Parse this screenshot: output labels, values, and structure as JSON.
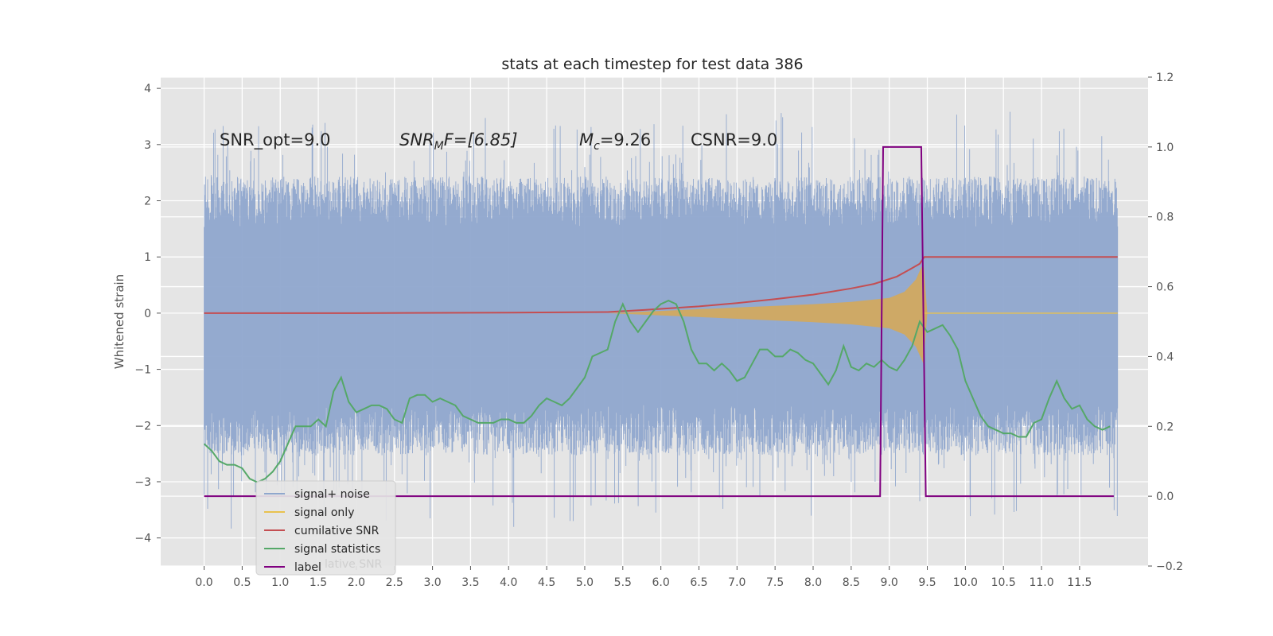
{
  "chart_data": {
    "type": "line",
    "title": "stats at each timestep for test data 386",
    "ylabel": "Whitened strain",
    "xlabel": "",
    "xlim": [
      -0.57,
      12.4
    ],
    "ylim": [
      -4.5,
      4.2
    ],
    "ylim_right": [
      -0.2,
      1.2
    ],
    "grid": true,
    "legend_position": "lower-left",
    "x_ticks": [
      "0.0",
      "0.5",
      "1.0",
      "1.5",
      "2.0",
      "2.5",
      "3.0",
      "3.5",
      "4.0",
      "4.5",
      "5.0",
      "5.5",
      "6.0",
      "6.5",
      "7.0",
      "7.5",
      "8.0",
      "8.5",
      "9.0",
      "9.5",
      "10.0",
      "10.5",
      "11.0",
      "11.5"
    ],
    "y_ticks": [
      "4",
      "3",
      "2",
      "1",
      "0",
      "−1",
      "−2",
      "−3",
      "−4"
    ],
    "y_ticks_right": [
      "1.2",
      "1.0",
      "0.8",
      "0.6",
      "0.4",
      "0.2",
      "0.0",
      "−0.2"
    ],
    "annotations": {
      "snr_opt": "SNR_opt=9.0",
      "snr_mf_base": "SNR",
      "snr_mf_sub": "M",
      "snr_mf_rest": "F=[6.85]",
      "mc_base": "M",
      "mc_sub": "c",
      "mc_rest": "=9.26",
      "csnr": "CSNR=9.0"
    },
    "colors": {
      "noise": "#8fa7cd",
      "signal": "#e8c24f",
      "signal_fill": "#d4a85a",
      "cumulative": "#c44e52",
      "statistics": "#55a868",
      "label": "#800080",
      "background": "#e5e5e5",
      "grid": "#ffffff"
    },
    "series": [
      {
        "name": "signal+ noise",
        "axis": "left",
        "x_range": [
          0,
          12.0
        ],
        "note_envelope": {
          "upper_typical": 1.8,
          "lower_typical": -1.9,
          "peak_max": 3.85,
          "peak_min": -4.1
        }
      },
      {
        "name": "signal only",
        "axis": "left",
        "x": [
          5.3,
          6.0,
          6.5,
          7.0,
          7.5,
          8.0,
          8.5,
          9.0,
          9.2,
          9.35,
          9.45,
          9.5,
          12.0
        ],
        "upper": [
          0.0,
          0.04,
          0.07,
          0.1,
          0.13,
          0.16,
          0.2,
          0.27,
          0.38,
          0.6,
          0.9,
          0.0,
          0.0
        ],
        "lower": [
          0.0,
          -0.04,
          -0.07,
          -0.1,
          -0.13,
          -0.16,
          -0.2,
          -0.27,
          -0.38,
          -0.6,
          -0.9,
          0.0,
          0.0
        ]
      },
      {
        "name": "cumilative SNR",
        "axis": "left",
        "x": [
          0.0,
          2.0,
          4.0,
          5.3,
          5.8,
          6.5,
          7.0,
          7.5,
          8.0,
          8.5,
          8.8,
          9.1,
          9.3,
          9.4,
          9.46,
          12.0
        ],
        "y": [
          0.0,
          0.0,
          0.01,
          0.02,
          0.06,
          0.12,
          0.18,
          0.25,
          0.33,
          0.44,
          0.52,
          0.65,
          0.8,
          0.88,
          1.0,
          1.0
        ]
      },
      {
        "name": "signal statistics",
        "axis": "right",
        "x": [
          0.0,
          0.1,
          0.2,
          0.3,
          0.4,
          0.5,
          0.6,
          0.7,
          0.8,
          0.9,
          1.0,
          1.1,
          1.2,
          1.3,
          1.4,
          1.5,
          1.6,
          1.7,
          1.8,
          1.9,
          2.0,
          2.1,
          2.2,
          2.3,
          2.4,
          2.5,
          2.6,
          2.7,
          2.8,
          2.9,
          3.0,
          3.1,
          3.2,
          3.3,
          3.4,
          3.5,
          3.6,
          3.7,
          3.8,
          3.9,
          4.0,
          4.1,
          4.2,
          4.3,
          4.4,
          4.5,
          4.6,
          4.7,
          4.8,
          4.9,
          5.0,
          5.1,
          5.2,
          5.3,
          5.4,
          5.5,
          5.6,
          5.7,
          5.8,
          5.9,
          6.0,
          6.1,
          6.2,
          6.3,
          6.4,
          6.5,
          6.6,
          6.7,
          6.8,
          6.9,
          7.0,
          7.1,
          7.2,
          7.3,
          7.4,
          7.5,
          7.6,
          7.7,
          7.8,
          7.9,
          8.0,
          8.1,
          8.2,
          8.3,
          8.4,
          8.5,
          8.6,
          8.7,
          8.8,
          8.9,
          9.0,
          9.1,
          9.2,
          9.3,
          9.4,
          9.5,
          9.6,
          9.7,
          9.8,
          9.9,
          10.0,
          10.1,
          10.2,
          10.3,
          10.4,
          10.5,
          10.6,
          10.7,
          10.8,
          10.9,
          11.0,
          11.1,
          11.2,
          11.3,
          11.4,
          11.5,
          11.6,
          11.7,
          11.8,
          11.9
        ],
        "y": [
          0.15,
          0.13,
          0.1,
          0.09,
          0.09,
          0.08,
          0.05,
          0.04,
          0.05,
          0.07,
          0.1,
          0.15,
          0.2,
          0.2,
          0.2,
          0.22,
          0.2,
          0.3,
          0.34,
          0.27,
          0.24,
          0.25,
          0.26,
          0.26,
          0.25,
          0.22,
          0.21,
          0.28,
          0.29,
          0.29,
          0.27,
          0.28,
          0.27,
          0.26,
          0.23,
          0.22,
          0.21,
          0.21,
          0.21,
          0.22,
          0.22,
          0.21,
          0.21,
          0.23,
          0.26,
          0.28,
          0.27,
          0.26,
          0.28,
          0.31,
          0.34,
          0.4,
          0.41,
          0.42,
          0.5,
          0.55,
          0.5,
          0.47,
          0.5,
          0.53,
          0.55,
          0.56,
          0.55,
          0.5,
          0.42,
          0.38,
          0.38,
          0.36,
          0.38,
          0.36,
          0.33,
          0.34,
          0.38,
          0.42,
          0.42,
          0.4,
          0.4,
          0.42,
          0.41,
          0.39,
          0.38,
          0.35,
          0.32,
          0.36,
          0.43,
          0.37,
          0.36,
          0.38,
          0.37,
          0.39,
          0.37,
          0.36,
          0.39,
          0.43,
          0.5,
          0.47,
          0.48,
          0.49,
          0.46,
          0.42,
          0.33,
          0.28,
          0.23,
          0.2,
          0.19,
          0.18,
          0.18,
          0.17,
          0.17,
          0.21,
          0.22,
          0.28,
          0.33,
          0.28,
          0.25,
          0.26,
          0.22,
          0.2,
          0.19,
          0.2
        ]
      },
      {
        "name": "label",
        "axis": "right",
        "x": [
          0.0,
          8.88,
          8.92,
          9.42,
          9.48,
          11.95
        ],
        "y": [
          0.0,
          0.0,
          1.0,
          1.0,
          0.0,
          0.0
        ]
      }
    ],
    "legend": [
      {
        "label": "signal+ noise",
        "color": "#8fa7cd"
      },
      {
        "label": "signal only",
        "color": "#e8c24f"
      },
      {
        "label": "cumilative SNR",
        "color": "#c44e52"
      },
      {
        "label": "signal statistics",
        "color": "#55a868"
      },
      {
        "label": "label",
        "color": "#800080"
      }
    ],
    "legend_ghost_text": "lative SNR"
  }
}
